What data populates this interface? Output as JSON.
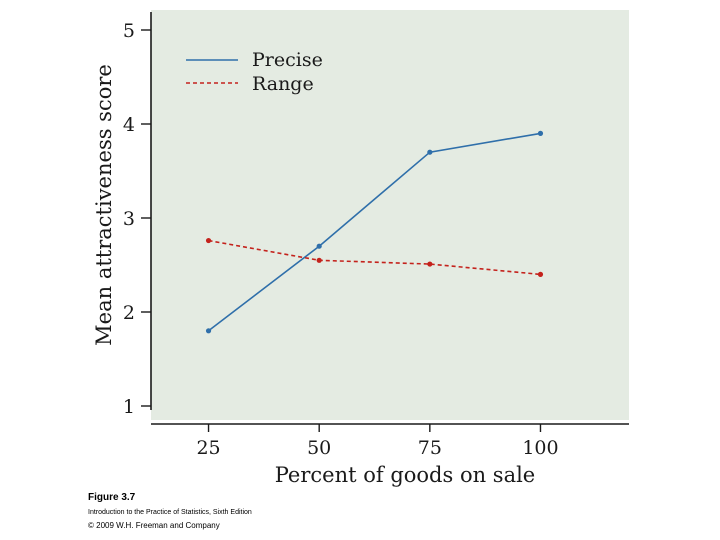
{
  "colors": {
    "plot_bg": "#e4ebe2",
    "precise": "#2f6faa",
    "range": "#c4221c",
    "axis": "#1a1a1a"
  },
  "chart_data": {
    "type": "line",
    "title": "",
    "xlabel": "Percent of goods on sale",
    "ylabel": "Mean attractiveness score",
    "x": [
      25,
      50,
      75,
      100
    ],
    "x_tick_labels": [
      "25",
      "50",
      "75",
      "100"
    ],
    "y_ticks": [
      1,
      2,
      3,
      4,
      5
    ],
    "y_tick_labels": [
      "1",
      "2",
      "3",
      "4",
      "5"
    ],
    "xlim": [
      12,
      120
    ],
    "ylim": [
      1,
      5.2
    ],
    "grid": false,
    "legend_position": "top-left",
    "series": [
      {
        "name": "Precise",
        "values": [
          1.8,
          2.7,
          3.7,
          3.9
        ],
        "style": "solid",
        "color": "#2f6faa"
      },
      {
        "name": "Range",
        "values": [
          2.76,
          2.55,
          2.51,
          2.4
        ],
        "style": "dashed",
        "color": "#c4221c"
      }
    ]
  },
  "caption": {
    "figure_label": "Figure 3.7",
    "book_title": "Introduction to the Practice of Statistics, Sixth Edition",
    "copyright": "© 2009 W.H. Freeman and Company"
  }
}
